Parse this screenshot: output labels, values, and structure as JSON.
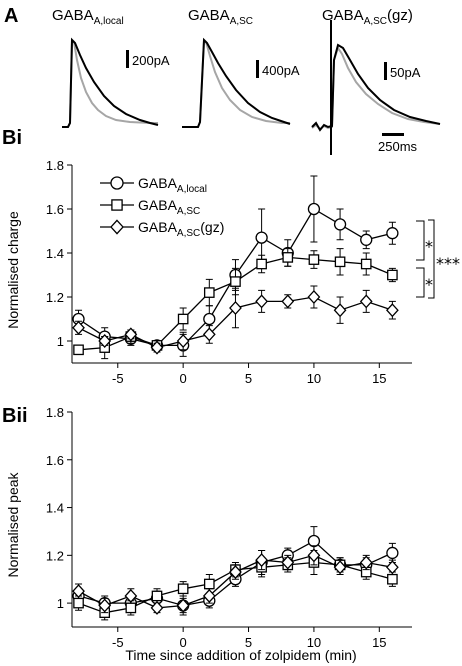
{
  "panels": {
    "a": "A",
    "bi": "Bi",
    "bii": "Bii"
  },
  "traces": [
    {
      "base": "GABA",
      "sub": "A,local",
      "suffix": "",
      "scale": "200pA"
    },
    {
      "base": "GABA",
      "sub": "A,SC",
      "suffix": "",
      "scale": "400pA"
    },
    {
      "base": "GABA",
      "sub": "A,SC",
      "suffix": "(gz)",
      "scale": "50pA"
    }
  ],
  "time_scale": "250ms",
  "colors": {
    "control": "#a6a6a6",
    "drug": "#000000"
  },
  "chart_data": [
    {
      "type": "line",
      "panel": "Bi",
      "ylabel": "Normalised charge",
      "xlabel": "",
      "ylim": [
        0.9,
        1.8
      ],
      "xlim": [
        -8.5,
        17.5
      ],
      "yticks": [
        1,
        1.2,
        1.4,
        1.6,
        1.8
      ],
      "xticks": [
        -5,
        0,
        5,
        10,
        15
      ],
      "legend_position": "top-left",
      "series": [
        {
          "base": "GABA",
          "sub": "A,local",
          "suffix": "",
          "marker": "circle",
          "x": [
            -8,
            -6,
            -4,
            -2,
            0,
            2,
            4,
            6,
            8,
            10,
            12,
            14,
            16
          ],
          "y": [
            1.1,
            1.02,
            1.01,
            0.98,
            0.98,
            1.1,
            1.3,
            1.47,
            1.4,
            1.6,
            1.53,
            1.46,
            1.49
          ],
          "err": [
            0.04,
            0.04,
            0.03,
            0.02,
            0.05,
            0.06,
            0.07,
            0.13,
            0.06,
            0.15,
            0.07,
            0.04,
            0.05
          ]
        },
        {
          "base": "GABA",
          "sub": "A,SC",
          "suffix": "",
          "marker": "square",
          "x": [
            -8,
            -6,
            -4,
            -2,
            0,
            2,
            4,
            6,
            8,
            10,
            12,
            14,
            16
          ],
          "y": [
            0.96,
            0.97,
            1.02,
            0.98,
            1.1,
            1.22,
            1.27,
            1.35,
            1.38,
            1.37,
            1.36,
            1.35,
            1.3
          ],
          "err": [
            0.02,
            0.05,
            0.03,
            0.02,
            0.05,
            0.06,
            0.06,
            0.04,
            0.04,
            0.04,
            0.06,
            0.05,
            0.03
          ]
        },
        {
          "base": "GABA",
          "sub": "A,SC",
          "suffix": "(gz)",
          "marker": "diamond",
          "x": [
            -8,
            -6,
            -4,
            -2,
            0,
            2,
            4,
            6,
            8,
            10,
            12,
            14,
            16
          ],
          "y": [
            1.06,
            1.0,
            1.03,
            0.97,
            1.0,
            1.03,
            1.15,
            1.18,
            1.18,
            1.2,
            1.14,
            1.18,
            1.14
          ],
          "err": [
            0.03,
            0.02,
            0.02,
            0.02,
            0.04,
            0.04,
            0.09,
            0.05,
            0.03,
            0.05,
            0.06,
            0.05,
            0.04
          ]
        }
      ],
      "significance": [
        "*",
        "*",
        "***"
      ]
    },
    {
      "type": "line",
      "panel": "Bii",
      "ylabel": "Normalised peak",
      "xlabel": "Time since addition of zolpidem (min)",
      "ylim": [
        0.9,
        1.8
      ],
      "xlim": [
        -8.5,
        17.5
      ],
      "yticks": [
        1,
        1.2,
        1.4,
        1.6,
        1.8
      ],
      "xticks": [
        -5,
        0,
        5,
        10,
        15
      ],
      "series": [
        {
          "marker": "circle",
          "x": [
            -8,
            -6,
            -4,
            -2,
            0,
            2,
            4,
            6,
            8,
            10,
            12,
            14,
            16
          ],
          "y": [
            1.03,
            1.0,
            1.0,
            1.02,
            0.99,
            1.01,
            1.1,
            1.17,
            1.2,
            1.26,
            1.16,
            1.16,
            1.21
          ],
          "err": [
            0.03,
            0.03,
            0.03,
            0.03,
            0.04,
            0.03,
            0.03,
            0.05,
            0.03,
            0.06,
            0.03,
            0.03,
            0.04
          ]
        },
        {
          "marker": "square",
          "x": [
            -8,
            -6,
            -4,
            -2,
            0,
            2,
            4,
            6,
            8,
            10,
            12,
            14,
            16
          ],
          "y": [
            1.0,
            0.96,
            0.98,
            1.03,
            1.06,
            1.08,
            1.14,
            1.15,
            1.16,
            1.17,
            1.16,
            1.13,
            1.1
          ],
          "err": [
            0.03,
            0.03,
            0.03,
            0.03,
            0.03,
            0.04,
            0.03,
            0.04,
            0.03,
            0.05,
            0.03,
            0.03,
            0.03
          ]
        },
        {
          "marker": "diamond",
          "x": [
            -8,
            -6,
            -4,
            -2,
            0,
            2,
            4,
            6,
            8,
            10,
            12,
            14,
            16
          ],
          "y": [
            1.05,
            0.99,
            1.03,
            0.98,
            0.99,
            1.03,
            1.13,
            1.18,
            1.17,
            1.2,
            1.15,
            1.17,
            1.15
          ],
          "err": [
            0.03,
            0.03,
            0.03,
            0.02,
            0.03,
            0.03,
            0.03,
            0.04,
            0.03,
            0.04,
            0.03,
            0.03,
            0.03
          ]
        }
      ]
    }
  ]
}
